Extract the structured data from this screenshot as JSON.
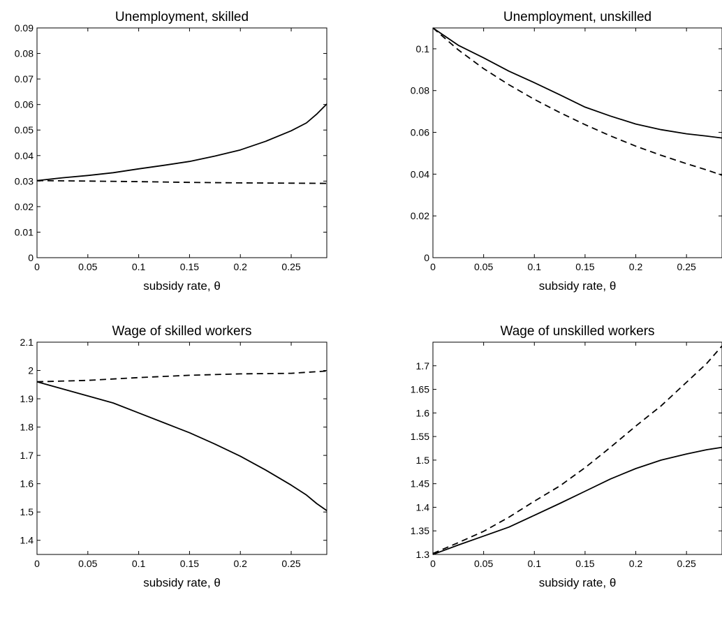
{
  "chart_data": [
    {
      "type": "line",
      "title": "Unemployment, skilled",
      "xlabel": "subsidy rate, θ",
      "ylabel": "",
      "xlim": [
        0,
        0.285
      ],
      "ylim": [
        0,
        0.09
      ],
      "xticks": [
        0,
        0.05,
        0.1,
        0.15,
        0.2,
        0.25
      ],
      "xtick_labels": [
        "0",
        "0.05",
        "0.1",
        "0.15",
        "0.2",
        "0.25"
      ],
      "yticks": [
        0,
        0.01,
        0.02,
        0.03,
        0.04,
        0.05,
        0.06,
        0.07,
        0.08,
        0.09
      ],
      "ytick_labels": [
        "0",
        "0.01",
        "0.02",
        "0.03",
        "0.04",
        "0.05",
        "0.06",
        "0.07",
        "0.08",
        "0.09"
      ],
      "grid": false,
      "series": [
        {
          "style": "solid",
          "x": [
            0,
            0.025,
            0.05,
            0.075,
            0.1,
            0.125,
            0.15,
            0.175,
            0.2,
            0.225,
            0.25,
            0.265,
            0.275,
            0.285
          ],
          "y": [
            0.0302,
            0.0313,
            0.0322,
            0.0333,
            0.0348,
            0.0362,
            0.0377,
            0.0398,
            0.0422,
            0.0456,
            0.0497,
            0.0528,
            0.0562,
            0.0602
          ]
        },
        {
          "style": "dashed",
          "x": [
            0,
            0.05,
            0.1,
            0.15,
            0.2,
            0.25,
            0.285
          ],
          "y": [
            0.0302,
            0.03,
            0.0298,
            0.0295,
            0.0293,
            0.0292,
            0.0291
          ]
        }
      ]
    },
    {
      "type": "line",
      "title": "Unemployment, unskilled",
      "xlabel": "subsidy rate, θ",
      "ylabel": "",
      "xlim": [
        0,
        0.285
      ],
      "ylim": [
        0,
        0.11
      ],
      "xticks": [
        0,
        0.05,
        0.1,
        0.15,
        0.2,
        0.25
      ],
      "xtick_labels": [
        "0",
        "0.05",
        "0.1",
        "0.15",
        "0.2",
        "0.25"
      ],
      "yticks": [
        0,
        0.02,
        0.04,
        0.06,
        0.08,
        0.1
      ],
      "ytick_labels": [
        "0",
        "0.02",
        "0.04",
        "0.06",
        "0.08",
        "0.1"
      ],
      "grid": false,
      "series": [
        {
          "style": "solid",
          "x": [
            0,
            0.025,
            0.05,
            0.075,
            0.1,
            0.125,
            0.15,
            0.175,
            0.2,
            0.225,
            0.25,
            0.27,
            0.285
          ],
          "y": [
            0.11,
            0.1017,
            0.0957,
            0.0893,
            0.0838,
            0.078,
            0.0721,
            0.0678,
            0.064,
            0.0613,
            0.0593,
            0.0582,
            0.0573
          ]
        },
        {
          "style": "dashed",
          "x": [
            0,
            0.025,
            0.05,
            0.075,
            0.1,
            0.125,
            0.15,
            0.175,
            0.2,
            0.225,
            0.25,
            0.27,
            0.285
          ],
          "y": [
            0.11,
            0.0995,
            0.0905,
            0.0828,
            0.0758,
            0.0695,
            0.0637,
            0.0583,
            0.0534,
            0.049,
            0.045,
            0.042,
            0.0395
          ]
        }
      ]
    },
    {
      "type": "line",
      "title": "Wage of skilled workers",
      "xlabel": "subsidy rate, θ",
      "ylabel": "",
      "xlim": [
        0,
        0.285
      ],
      "ylim": [
        1.35,
        2.1
      ],
      "xticks": [
        0,
        0.05,
        0.1,
        0.15,
        0.2,
        0.25
      ],
      "xtick_labels": [
        "0",
        "0.05",
        "0.1",
        "0.15",
        "0.2",
        "0.25"
      ],
      "yticks": [
        1.4,
        1.5,
        1.6,
        1.7,
        1.8,
        1.9,
        2.0,
        2.1
      ],
      "ytick_labels": [
        "1.4",
        "1.5",
        "1.6",
        "1.7",
        "1.8",
        "1.9",
        "2",
        "2.1"
      ],
      "grid": false,
      "series": [
        {
          "style": "solid",
          "x": [
            0,
            0.025,
            0.05,
            0.075,
            0.1,
            0.125,
            0.15,
            0.175,
            0.2,
            0.225,
            0.25,
            0.265,
            0.275,
            0.285
          ],
          "y": [
            1.96,
            1.935,
            1.91,
            1.885,
            1.85,
            1.815,
            1.78,
            1.74,
            1.697,
            1.648,
            1.595,
            1.56,
            1.53,
            1.505
          ]
        },
        {
          "style": "dashed",
          "x": [
            0,
            0.05,
            0.1,
            0.15,
            0.2,
            0.25,
            0.285
          ],
          "y": [
            1.96,
            1.965,
            1.975,
            1.983,
            1.988,
            1.99,
            1.998
          ]
        }
      ]
    },
    {
      "type": "line",
      "title": "Wage of unskilled workers",
      "xlabel": "subsidy rate, θ",
      "ylabel": "",
      "xlim": [
        0,
        0.285
      ],
      "ylim": [
        1.3,
        1.75
      ],
      "xticks": [
        0,
        0.05,
        0.1,
        0.15,
        0.2,
        0.25
      ],
      "xtick_labels": [
        "0",
        "0.05",
        "0.1",
        "0.15",
        "0.2",
        "0.25"
      ],
      "yticks": [
        1.3,
        1.35,
        1.4,
        1.45,
        1.5,
        1.55,
        1.6,
        1.65,
        1.7
      ],
      "ytick_labels": [
        "1.3",
        "1.35",
        "1.4",
        "1.45",
        "1.5",
        "1.55",
        "1.6",
        "1.65",
        "1.7"
      ],
      "grid": false,
      "series": [
        {
          "style": "solid",
          "x": [
            0,
            0.025,
            0.05,
            0.075,
            0.1,
            0.125,
            0.15,
            0.175,
            0.2,
            0.225,
            0.25,
            0.27,
            0.285
          ],
          "y": [
            1.3,
            1.32,
            1.339,
            1.358,
            1.383,
            1.408,
            1.434,
            1.46,
            1.482,
            1.5,
            1.513,
            1.522,
            1.527
          ]
        },
        {
          "style": "dashed",
          "x": [
            0,
            0.025,
            0.05,
            0.075,
            0.1,
            0.125,
            0.15,
            0.175,
            0.2,
            0.225,
            0.25,
            0.27,
            0.285
          ],
          "y": [
            1.302,
            1.325,
            1.349,
            1.379,
            1.413,
            1.445,
            1.484,
            1.527,
            1.572,
            1.615,
            1.665,
            1.705,
            1.742
          ]
        }
      ]
    }
  ]
}
